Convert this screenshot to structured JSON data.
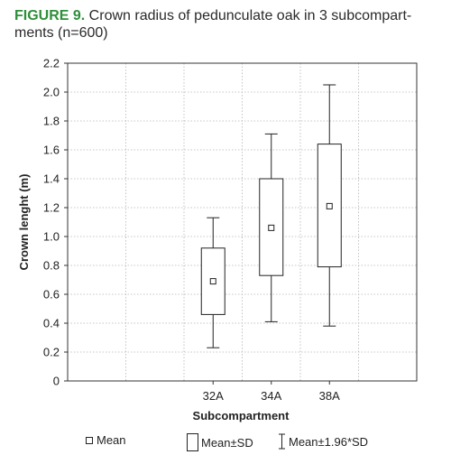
{
  "figure": {
    "caption_lead": "FIGURE 9.",
    "caption_text": " Crown radius of pedunculate oak in 3 subcompart-ments (n=600)"
  },
  "legend": {
    "mean_label": "Mean",
    "sd_label": "Mean±SD",
    "ci_label": "Mean±1.96*SD"
  },
  "chart_data": {
    "type": "box",
    "title": "",
    "xlabel": "Subcompartment",
    "ylabel": "Crown lenght (m)",
    "ylim": [
      0,
      2.2
    ],
    "yticks": [
      0,
      0.2,
      0.4,
      0.6,
      0.8,
      1.0,
      1.2,
      1.4,
      1.6,
      1.8,
      2.0,
      2.2
    ],
    "grid": true,
    "legend_position": "bottom",
    "categories": [
      "32A",
      "34A",
      "38A"
    ],
    "x_slots": 6,
    "x_positions": [
      3,
      4,
      5
    ],
    "mean": [
      0.69,
      1.06,
      1.21
    ],
    "sd_low": [
      0.46,
      0.73,
      0.79
    ],
    "sd_high": [
      0.92,
      1.4,
      1.64
    ],
    "ci_low": [
      0.23,
      0.41,
      0.38
    ],
    "ci_high": [
      1.13,
      1.71,
      2.05
    ]
  }
}
